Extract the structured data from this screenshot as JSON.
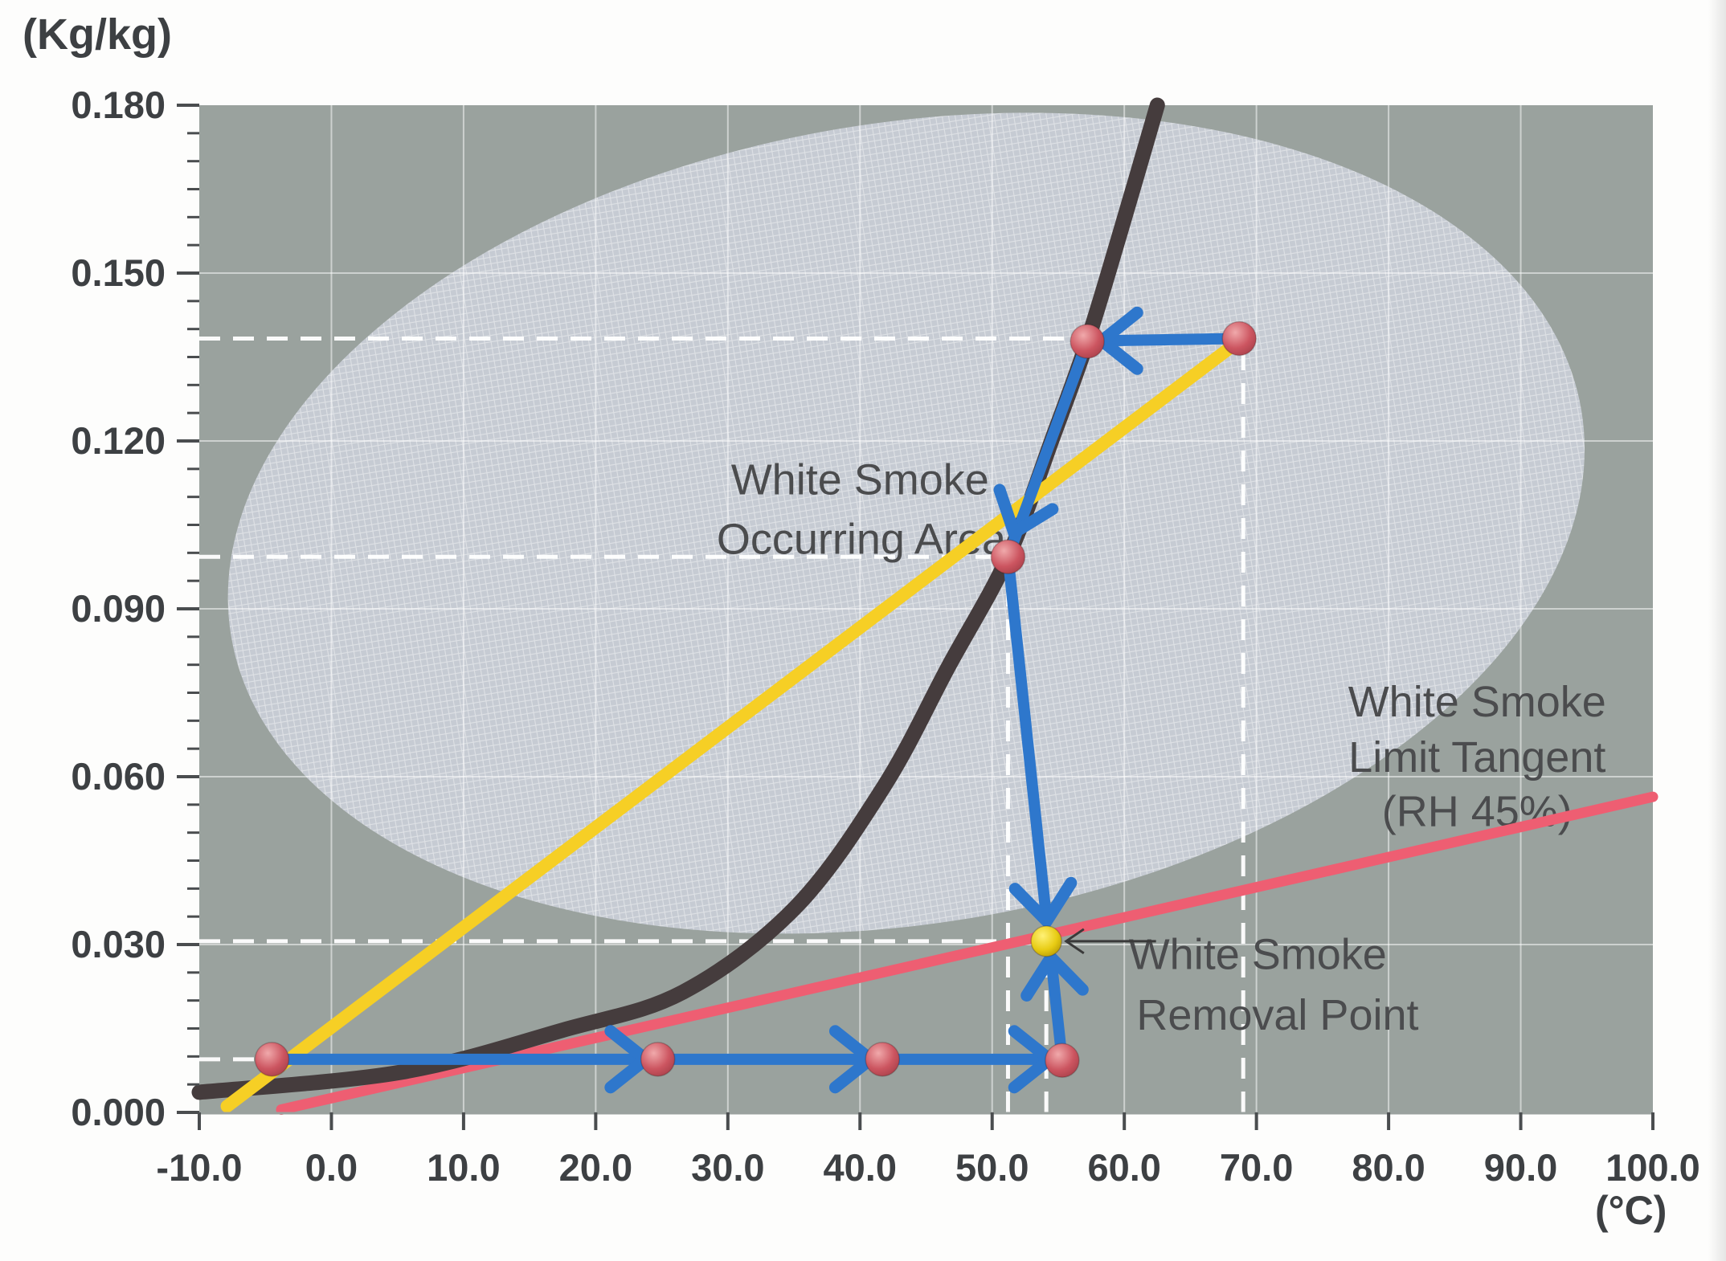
{
  "page": {
    "y_unit": "(Kg/kg)",
    "x_unit": "(°C)"
  },
  "chart_data": {
    "type": "line",
    "title": "",
    "xlabel": "(°C)",
    "ylabel": "(Kg/kg)",
    "xlim": [
      -10,
      100
    ],
    "ylim": [
      0,
      0.18
    ],
    "grid": {
      "x_step": 10,
      "y_step": 0.03,
      "visible": true
    },
    "x_ticks": [
      {
        "value": -10,
        "label": "-10.0"
      },
      {
        "value": 0,
        "label": "0.0"
      },
      {
        "value": 10,
        "label": "10.0"
      },
      {
        "value": 20,
        "label": "20.0"
      },
      {
        "value": 30,
        "label": "30.0"
      },
      {
        "value": 40,
        "label": "40.0"
      },
      {
        "value": 50,
        "label": "50.0"
      },
      {
        "value": 60,
        "label": "60.0"
      },
      {
        "value": 70,
        "label": "70.0"
      },
      {
        "value": 80,
        "label": "80.0"
      },
      {
        "value": 90,
        "label": "90.0"
      },
      {
        "value": 100,
        "label": "100.0"
      }
    ],
    "y_ticks": [
      {
        "value": 0.0,
        "label": "0.000"
      },
      {
        "value": 0.03,
        "label": "0.030"
      },
      {
        "value": 0.06,
        "label": "0.060"
      },
      {
        "value": 0.09,
        "label": "0.090"
      },
      {
        "value": 0.12,
        "label": "0.120"
      },
      {
        "value": 0.15,
        "label": "0.150"
      },
      {
        "value": 0.18,
        "label": "0.180"
      }
    ],
    "y_minor_step": 0.005,
    "colors": {
      "plot_bg": "#9aa29e",
      "smoke_area_fill": "#c6cbd3",
      "mesh_line": "rgba(255,255,255,0.42)",
      "grid_line": "rgba(255,255,255,0.5)",
      "guide_dash": "rgba(255,255,255,0.95)",
      "saturation_curve": "#453c3d",
      "mixing_line": "#f6cf25",
      "limit_tangent": "#ee5e72",
      "process_blue": "#2e77cc",
      "red_dot": "#c4515c",
      "yellow_dot": "#e6c912",
      "text": "#4b4c4e",
      "tick": "#4a4d4f",
      "axis_label": "#3d4043",
      "pointer": "#3a3a3a"
    },
    "smoke_area_ellipse": {
      "center": [
        43.5,
        0.1053
      ],
      "rx_degC": 51.8,
      "ry_w": 0.0715,
      "rotation_deg": -9.5
    },
    "series": [
      {
        "name": "saturation-curve",
        "color_key": "saturation_curve",
        "width": 19,
        "smooth": true,
        "points": [
          [
            -10,
            0.0036
          ],
          [
            5.3,
            0.0072
          ],
          [
            17.5,
            0.0147
          ],
          [
            26.6,
            0.0215
          ],
          [
            35.1,
            0.0366
          ],
          [
            41.8,
            0.0582
          ],
          [
            46.7,
            0.0797
          ],
          [
            51.2,
            0.0993
          ],
          [
            54.6,
            0.1207
          ],
          [
            57.2,
            0.1378
          ],
          [
            59.7,
            0.1573
          ],
          [
            62.5,
            0.18
          ]
        ]
      },
      {
        "name": "mixing-line",
        "color_key": "mixing_line",
        "width": 16,
        "smooth": false,
        "points": [
          [
            -7.9,
            0.0011
          ],
          [
            68.7,
            0.1379
          ]
        ]
      },
      {
        "name": "white-smoke-limit-tangent",
        "color_key": "limit_tangent",
        "width": 13,
        "smooth": false,
        "points": [
          [
            -3.8,
            0.0005
          ],
          [
            100,
            0.0564
          ]
        ]
      }
    ],
    "process_path": {
      "color_key": "process_blue",
      "width": 14,
      "segments": [
        {
          "from": [
            -4.5,
            0.0095
          ],
          "to": [
            55.3,
            0.0095
          ]
        },
        {
          "from": [
            55.3,
            0.0093
          ],
          "to": [
            54.45,
            0.0277
          ]
        },
        {
          "from": [
            68.7,
            0.1383
          ],
          "to": [
            58.3,
            0.1379
          ]
        },
        {
          "from": [
            57.2,
            0.1378
          ],
          "to": [
            51.2,
            0.0993
          ]
        },
        {
          "from": [
            51.2,
            0.0993
          ],
          "to": [
            54.13,
            0.0342
          ]
        }
      ],
      "arrowheads": [
        {
          "at": [
            23.8,
            0.0095
          ],
          "angle": 0
        },
        {
          "at": [
            40.8,
            0.0095
          ],
          "angle": 0
        },
        {
          "at": [
            54.35,
            0.0095
          ],
          "angle": 0
        },
        {
          "at": [
            54.45,
            0.0277
          ],
          "angle": -96
        },
        {
          "at": [
            58.3,
            0.1379
          ],
          "angle": 180
        },
        {
          "at": [
            51.65,
            0.1036
          ],
          "angle": 110
        },
        {
          "at": [
            54.13,
            0.0342
          ],
          "angle": 84
        }
      ]
    },
    "points": [
      {
        "name": "start-point",
        "T": -4.5,
        "w": 0.0095,
        "kind": "red"
      },
      {
        "name": "path-point-25c",
        "T": 24.7,
        "w": 0.0095,
        "kind": "red"
      },
      {
        "name": "path-point-42c",
        "T": 41.7,
        "w": 0.0095,
        "kind": "red"
      },
      {
        "name": "path-point-55c",
        "T": 55.3,
        "w": 0.0093,
        "kind": "red"
      },
      {
        "name": "curve-point-lower",
        "T": 51.2,
        "w": 0.0993,
        "kind": "red"
      },
      {
        "name": "curve-point-upper",
        "T": 57.2,
        "w": 0.1378,
        "kind": "red"
      },
      {
        "name": "exhaust-point",
        "T": 68.7,
        "w": 0.1383,
        "kind": "red"
      },
      {
        "name": "white-smoke-removal-point",
        "T": 54.1,
        "w": 0.0306,
        "kind": "yellow"
      }
    ],
    "guides": {
      "horizontal": [
        {
          "w": 0.1383,
          "from": -10,
          "to": 57.2
        },
        {
          "w": 0.0993,
          "from": -10,
          "to": 51.2
        },
        {
          "w": 0.0306,
          "from": -10,
          "to": 54.1
        },
        {
          "w": 0.0095,
          "from": -10,
          "to": -4.5
        }
      ],
      "vertical": [
        {
          "T": 51.2,
          "from": 0,
          "to": 0.0993
        },
        {
          "T": 54.1,
          "from": 0,
          "to": 0.0306
        },
        {
          "T": 69.0,
          "from": 0,
          "to": 0.1383
        }
      ]
    },
    "annotations": [
      {
        "name": "occurring-area-line1",
        "text": "White Smoke",
        "T": 40.0,
        "w": 0.1125
      },
      {
        "name": "occurring-area-line2",
        "text": "Occurring Area",
        "T": 40.1,
        "w": 0.1019
      },
      {
        "name": "tangent-line1",
        "text": "White Smoke",
        "T": 86.7,
        "w": 0.0728
      },
      {
        "name": "tangent-line2",
        "text": "Limit Tangent",
        "T": 86.7,
        "w": 0.0629
      },
      {
        "name": "tangent-line3",
        "text": "(RH 45%)",
        "T": 86.7,
        "w": 0.0532
      },
      {
        "name": "removal-line1",
        "text": "White Smoke",
        "T": 70.1,
        "w": 0.0277
      },
      {
        "name": "removal-line2",
        "text": "Removal Point",
        "T": 71.6,
        "w": 0.0168
      }
    ],
    "pointer_arrow": {
      "from": [
        62.4,
        0.0306
      ],
      "to": [
        55.6,
        0.0306
      ]
    }
  }
}
